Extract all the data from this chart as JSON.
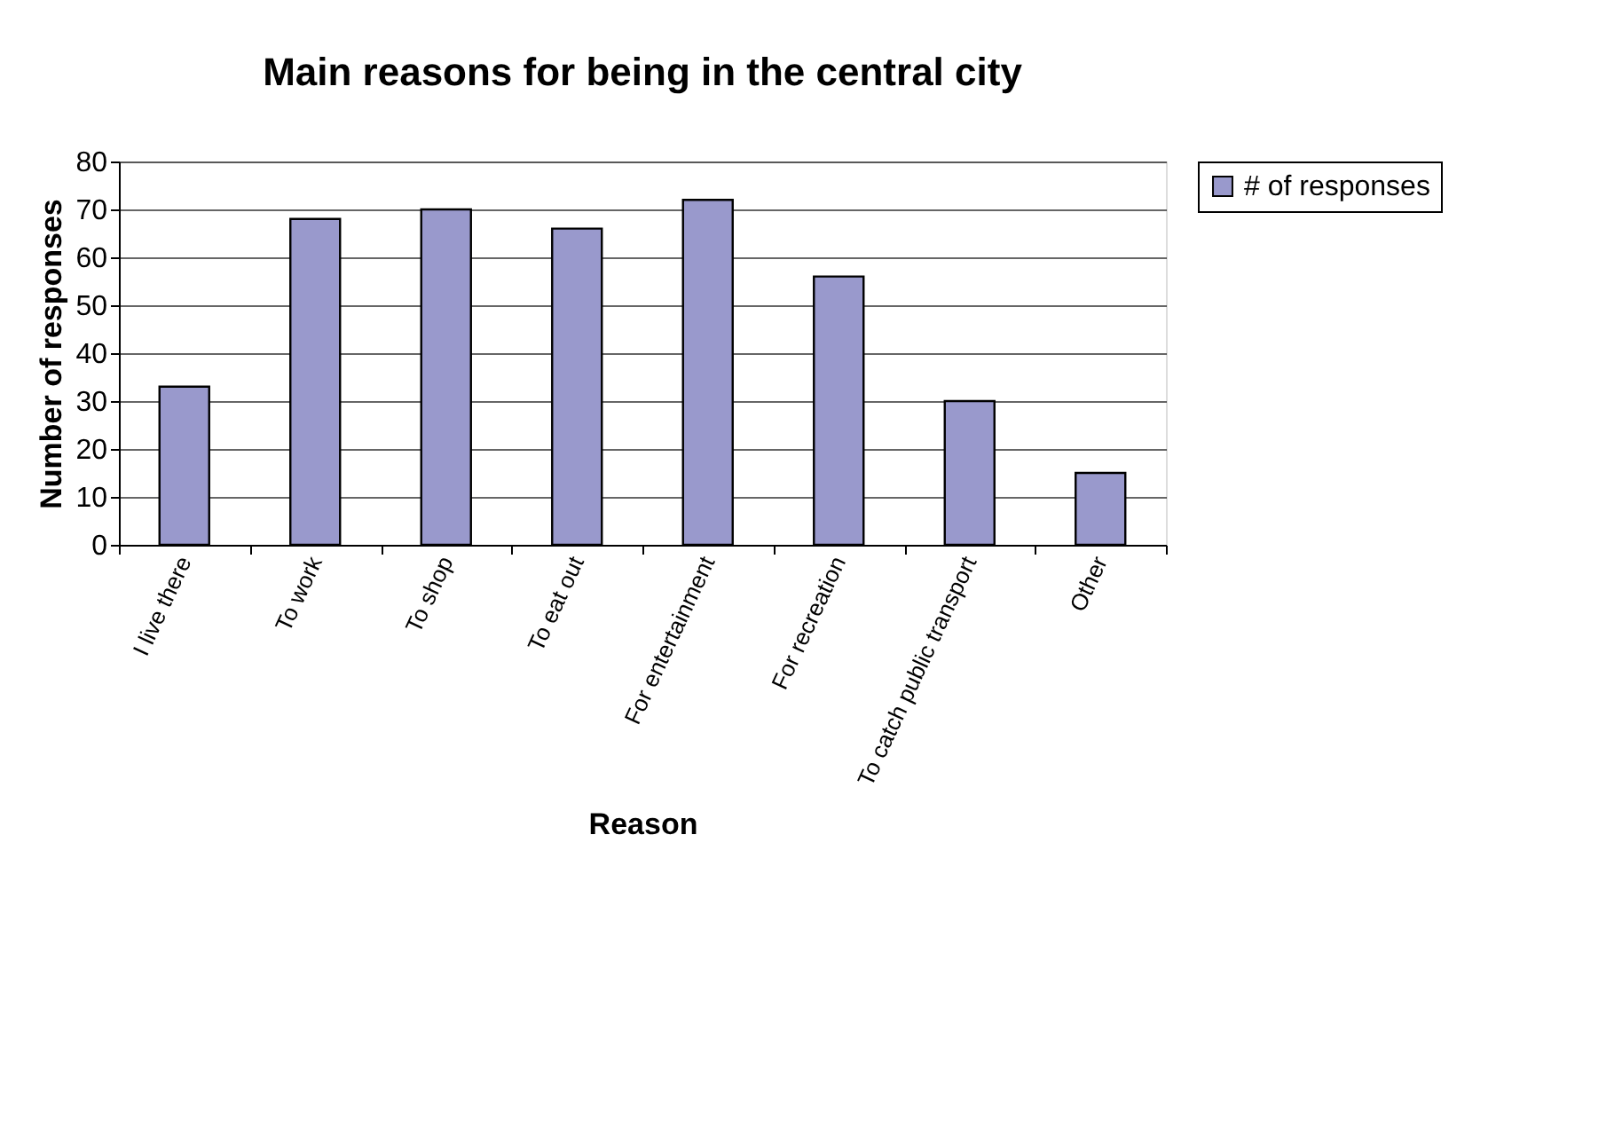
{
  "chart_data": {
    "type": "bar",
    "title": "Main reasons for being in the central city",
    "xlabel": "Reason",
    "ylabel": "Number of responses",
    "categories": [
      "I live there",
      "To work",
      "To shop",
      "To eat out",
      "For entertainment",
      "For recreation",
      "To catch public transport",
      "Other"
    ],
    "series": [
      {
        "name": "# of responses",
        "color": "#9999cc",
        "values": [
          33,
          68,
          70,
          66,
          72,
          56,
          30,
          15
        ]
      }
    ],
    "ylim": [
      0,
      80
    ],
    "yticks": [
      0,
      10,
      20,
      30,
      40,
      50,
      60,
      70,
      80
    ],
    "grid": "y",
    "legend": "right"
  }
}
